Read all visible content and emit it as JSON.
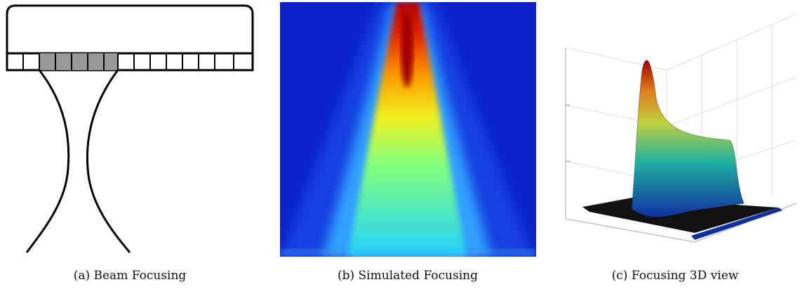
{
  "captions": [
    "(a) Beam Focusing",
    "(b) Simulated Focusing",
    "(c) Focusing 3D view"
  ]
}
